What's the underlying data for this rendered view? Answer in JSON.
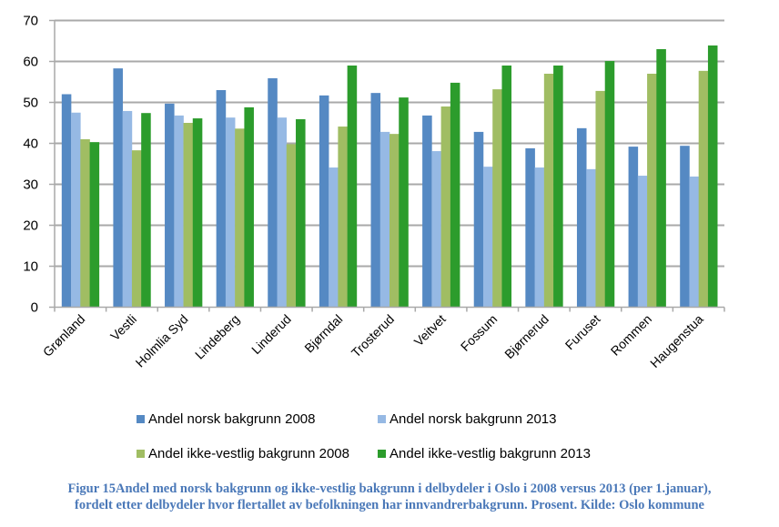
{
  "chart_data": {
    "type": "bar",
    "title": "",
    "xlabel": "",
    "ylabel": "",
    "ylim": [
      0,
      70
    ],
    "yticks": [
      0,
      10,
      20,
      30,
      40,
      50,
      60,
      70
    ],
    "grid": true,
    "legend_position": "bottom",
    "categories": [
      "Grønland",
      "Vestli",
      "Holmlia Syd",
      "Lindeberg",
      "Linderud",
      "Bjørndal",
      "Trosterud",
      "Veitvet",
      "Fossum",
      "Bjørnerud",
      "Furuset",
      "Rommen",
      "Haugenstua"
    ],
    "series": [
      {
        "name": "Andel norsk bakgrunn 2008",
        "color": "#5589c3",
        "values": [
          52.0,
          58.3,
          49.7,
          53.0,
          55.9,
          51.7,
          52.3,
          46.8,
          42.8,
          38.8,
          43.7,
          39.2,
          39.4
        ]
      },
      {
        "name": "Andel norsk bakgrunn 2013",
        "color": "#96b9e4",
        "values": [
          47.5,
          47.9,
          46.8,
          46.3,
          46.3,
          34.1,
          42.8,
          38.1,
          34.3,
          34.1,
          33.7,
          32.1,
          31.9
        ]
      },
      {
        "name": "Andel ikke-vestlig bakgrunn 2008",
        "color": "#a0bd63",
        "values": [
          41.0,
          38.3,
          45.0,
          43.6,
          39.8,
          44.1,
          42.3,
          49.0,
          53.2,
          57.0,
          52.8,
          57.0,
          57.7
        ]
      },
      {
        "name": "Andel ikke-vestlig bakgrunn 2013",
        "color": "#2c9c2c",
        "values": [
          40.3,
          47.4,
          46.1,
          48.8,
          45.9,
          59.0,
          51.2,
          54.8,
          59.0,
          59.0,
          60.1,
          63.0,
          63.9
        ]
      }
    ]
  },
  "caption": {
    "line1": "Figur 15Andel med norsk bakgrunn og ikke-vestlig bakgrunn i delbydeler i Oslo i 2008 versus 2013 (per 1.januar),",
    "line2": "fordelt etter delbydeler hvor flertallet av befolkningen har innvandrerbakgrunn. Prosent. Kilde: Oslo kommune"
  }
}
